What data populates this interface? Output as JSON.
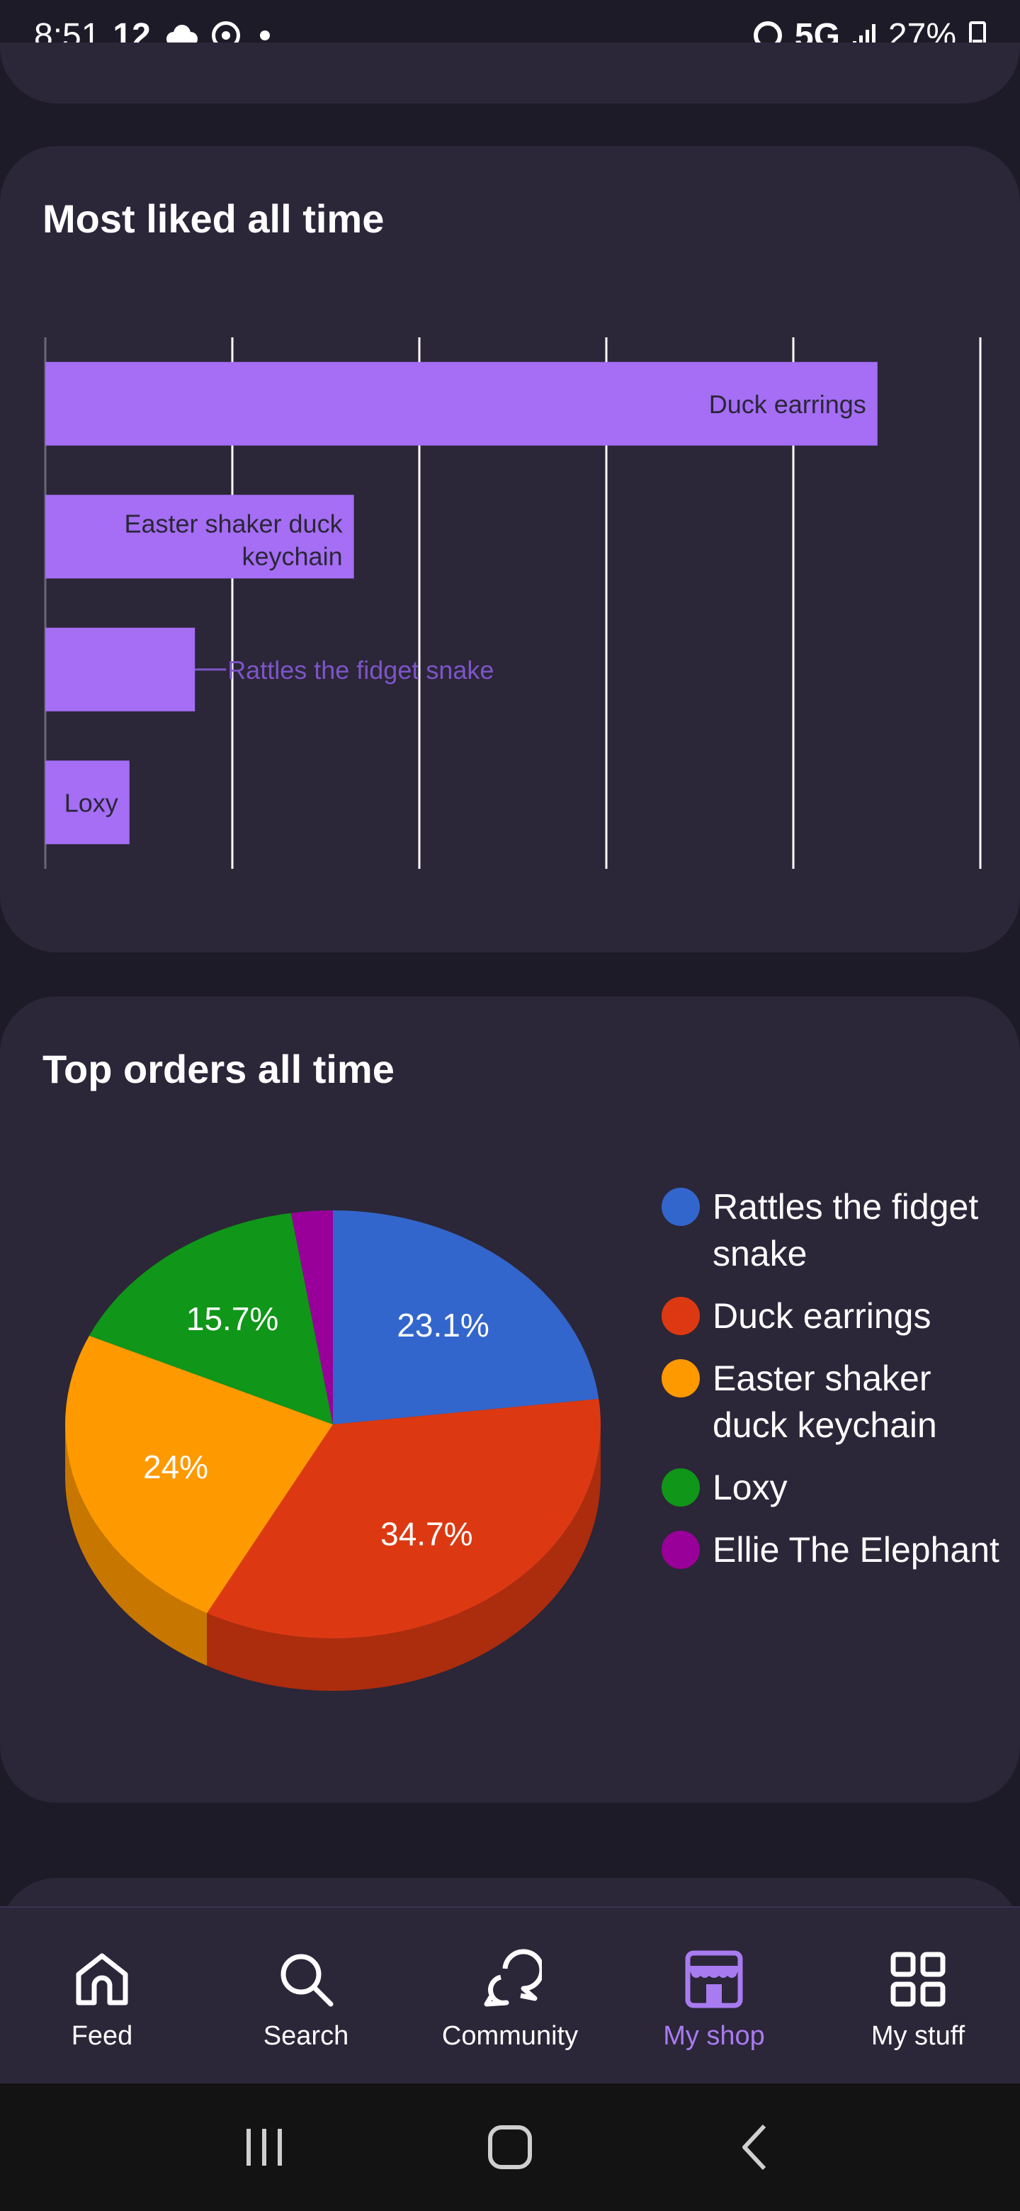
{
  "status_bar": {
    "time": "8:51",
    "notification_count": "12",
    "network": "5G",
    "battery": "27%"
  },
  "liked_card": {
    "title": "Most liked all time"
  },
  "orders_card": {
    "title": "Top orders all time"
  },
  "chart_data": [
    {
      "type": "bar",
      "orientation": "horizontal",
      "title": "Most liked all time",
      "categories": [
        "Duck earrings",
        "Easter shaker duck keychain",
        "Rattles the fidget snake",
        "Loxy"
      ],
      "values": [
        8.9,
        3.3,
        1.6,
        0.9
      ],
      "xlim": [
        0,
        10
      ],
      "grid": true,
      "color": "#a56ef5",
      "label_color_outside": "#7d55c7"
    },
    {
      "type": "pie",
      "style": "3d",
      "title": "Top orders all time",
      "series": [
        {
          "name": "Rattles the fidget snake",
          "value": 23.1,
          "label": "23.1%",
          "color": "#3366cc"
        },
        {
          "name": "Duck earrings",
          "value": 34.7,
          "label": "34.7%",
          "color": "#dc3912"
        },
        {
          "name": "Easter shaker duck keychain",
          "value": 24.0,
          "label": "24%",
          "color": "#ff9900"
        },
        {
          "name": "Loxy",
          "value": 15.7,
          "label": "15.7%",
          "color": "#109618"
        },
        {
          "name": "Ellie The Elephant",
          "value": 2.5,
          "label": "",
          "color": "#990099"
        }
      ],
      "legend": {
        "position": "right",
        "items": [
          {
            "label": "Rattles the fidget snake",
            "color": "#3366cc"
          },
          {
            "label": "Duck earrings",
            "color": "#dc3912"
          },
          {
            "label": "Easter shaker duck keychain",
            "color": "#ff9900"
          },
          {
            "label": "Loxy",
            "color": "#109618"
          },
          {
            "label": "Ellie The Elephant",
            "color": "#990099"
          }
        ]
      }
    }
  ],
  "bottom_nav": {
    "items": [
      {
        "label": "Feed",
        "icon": "home-icon",
        "active": false
      },
      {
        "label": "Search",
        "icon": "search-icon",
        "active": false
      },
      {
        "label": "Community",
        "icon": "chat-bubbles-icon",
        "active": false
      },
      {
        "label": "My shop",
        "icon": "shop-icon",
        "active": true
      },
      {
        "label": "My stuff",
        "icon": "grid-icon",
        "active": false
      }
    ]
  },
  "colors": {
    "background": "#1e1b29",
    "card": "#2b2638",
    "accent": "#a87bf0"
  }
}
